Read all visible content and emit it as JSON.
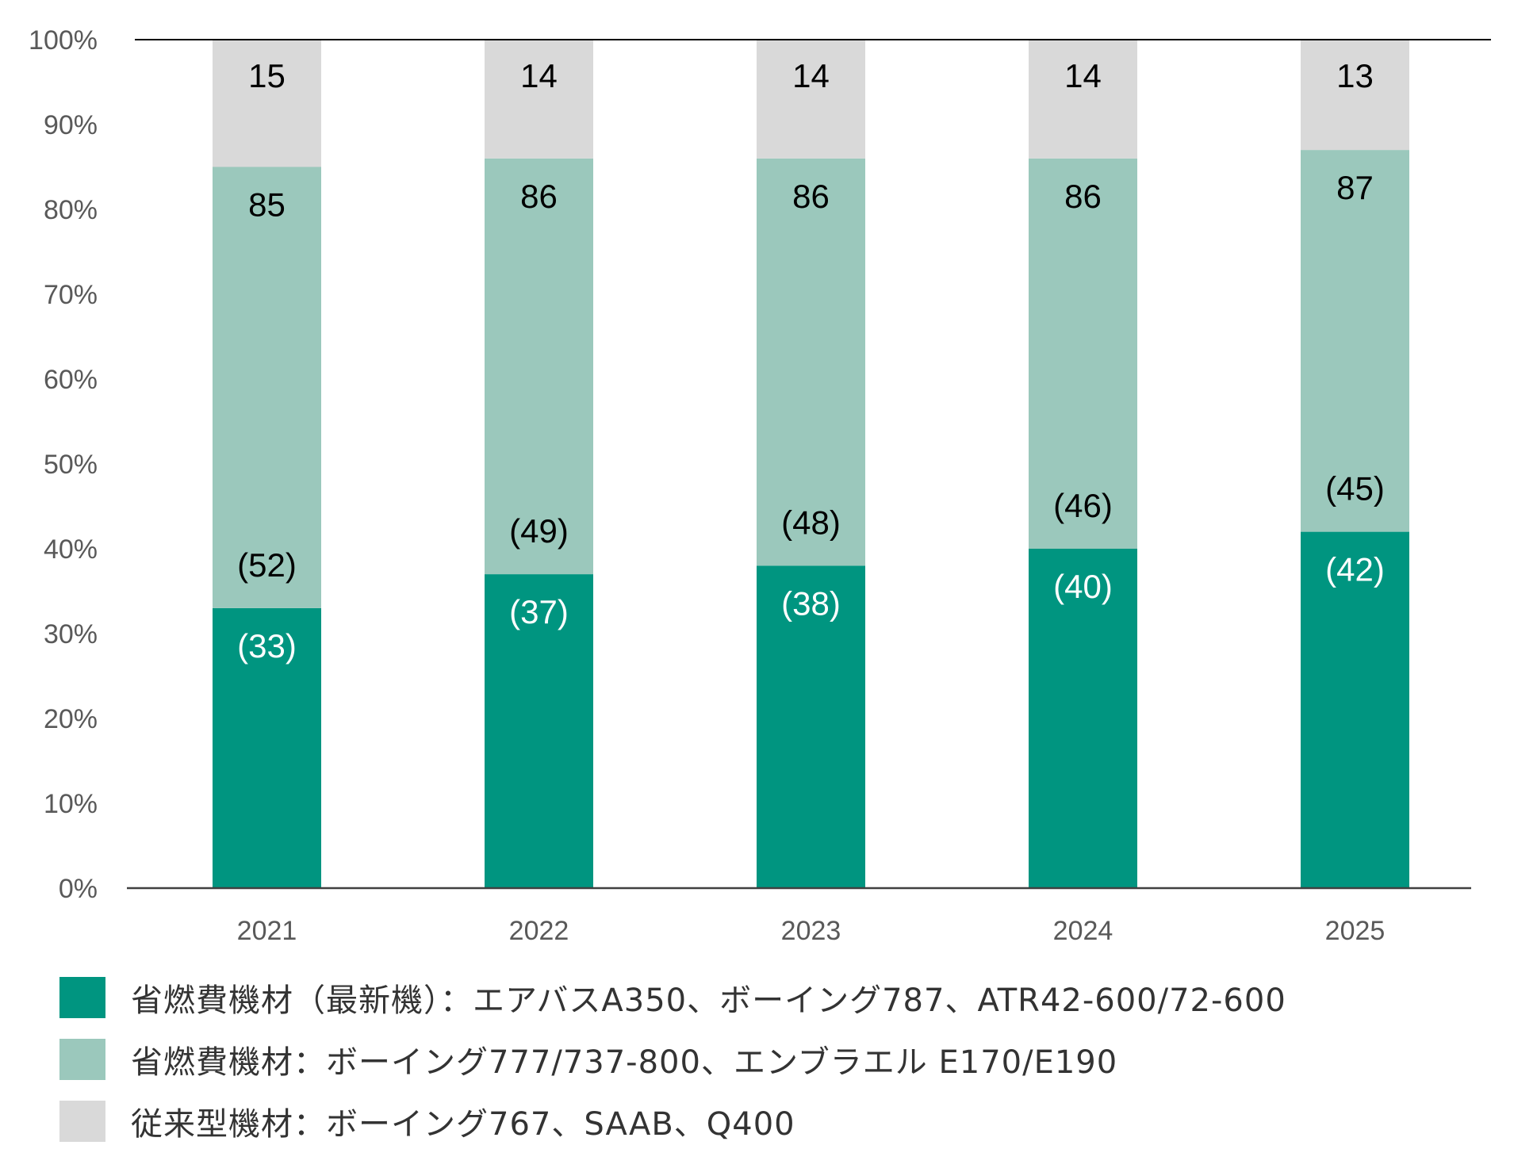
{
  "chart_data": {
    "type": "bar",
    "stacked": true,
    "percent": true,
    "categories": [
      "2021",
      "2022",
      "2023",
      "2024",
      "2025"
    ],
    "series": [
      {
        "name": "省燃費機材（最新機）：エアバスA350、ボーイング787、ATR42-600/72-600",
        "values": [
          33,
          37,
          38,
          40,
          42
        ],
        "labels": [
          "(33)",
          "(37)",
          "(38)",
          "(40)",
          "(42)"
        ],
        "color": "#009580",
        "label_color": "#ffffff"
      },
      {
        "name": "省燃費機材：ボーイング777/737-800、エンブラエル E170/E190",
        "values": [
          52,
          49,
          48,
          46,
          45
        ],
        "labels": [
          "(52)",
          "(49)",
          "(48)",
          "(46)",
          "(45)"
        ],
        "color": "#9bc8bc",
        "label_color": "#000000"
      },
      {
        "name": "従来型機材：ボーイング767、SAAB、Q400",
        "values": [
          15,
          14,
          14,
          14,
          13
        ],
        "labels": [
          "15",
          "14",
          "14",
          "14",
          "13"
        ],
        "color": "#d9d9d9",
        "label_color": "#000000"
      }
    ],
    "cumulative_labels": [
      "85",
      "86",
      "86",
      "86",
      "87"
    ],
    "y_ticks": [
      "0%",
      "10%",
      "20%",
      "30%",
      "40%",
      "50%",
      "60%",
      "70%",
      "80%",
      "90%",
      "100%"
    ],
    "ylim": [
      0,
      100
    ],
    "grid": false,
    "legend_position": "bottom"
  }
}
